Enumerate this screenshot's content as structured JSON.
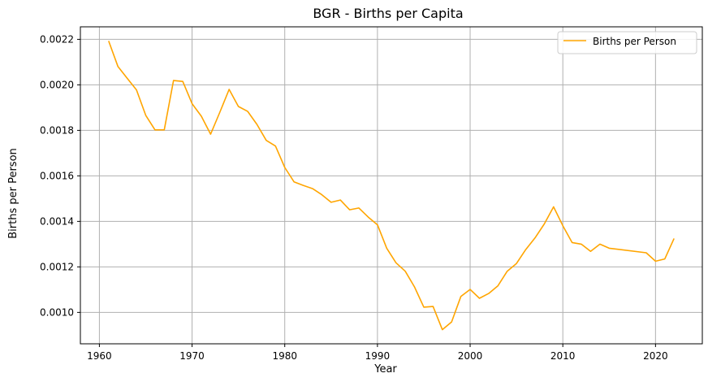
{
  "chart_data": {
    "type": "line",
    "title": "BGR - Births per Capita",
    "xlabel": "Year",
    "ylabel": "Births per Person",
    "xlim": [
      1957.95,
      2025.05
    ],
    "ylim": [
      0.000862,
      0.002255
    ],
    "xticks": [
      1960,
      1970,
      1980,
      1990,
      2000,
      2010,
      2020
    ],
    "xtick_labels": [
      "1960",
      "1970",
      "1980",
      "1990",
      "2000",
      "2010",
      "2020"
    ],
    "yticks": [
      0.001,
      0.0012,
      0.0014,
      0.0016,
      0.0018,
      0.002,
      0.0022
    ],
    "ytick_labels": [
      "0.0010",
      "0.0012",
      "0.0014",
      "0.0016",
      "0.0018",
      "0.0020",
      "0.0022"
    ],
    "grid": true,
    "legend_position": "top-right",
    "series": [
      {
        "name": "Births per Person",
        "color": "#FFA500",
        "x": [
          1961,
          1962,
          1963,
          1964,
          1965,
          1966,
          1967,
          1968,
          1969,
          1970,
          1971,
          1972,
          1973,
          1974,
          1975,
          1976,
          1977,
          1978,
          1979,
          1980,
          1981,
          1982,
          1983,
          1984,
          1985,
          1986,
          1987,
          1988,
          1989,
          1990,
          1991,
          1992,
          1993,
          1994,
          1995,
          1996,
          1997,
          1998,
          1999,
          2000,
          2001,
          2002,
          2003,
          2004,
          2005,
          2006,
          2007,
          2008,
          2009,
          2010,
          2011,
          2012,
          2013,
          2014,
          2015,
          2019,
          2020,
          2021,
          2022
        ],
        "y": [
          0.002193,
          0.002081,
          0.002029,
          0.001978,
          0.001866,
          0.001802,
          0.001802,
          0.002019,
          0.002015,
          0.001917,
          0.001862,
          0.001783,
          0.00188,
          0.00198,
          0.001905,
          0.001883,
          0.001826,
          0.001756,
          0.001731,
          0.001637,
          0.001574,
          0.001558,
          0.001544,
          0.001517,
          0.001484,
          0.001494,
          0.001451,
          0.001459,
          0.001419,
          0.001385,
          0.001282,
          0.001218,
          0.001181,
          0.001112,
          0.001023,
          0.001026,
          0.000924,
          0.000958,
          0.00107,
          0.001101,
          0.001062,
          0.001083,
          0.001117,
          0.001181,
          0.001215,
          0.001276,
          0.001327,
          0.001389,
          0.001464,
          0.001381,
          0.001307,
          0.0013,
          0.001268,
          0.0013,
          0.001282,
          0.001262,
          0.001225,
          0.001235,
          0.001325
        ]
      }
    ]
  }
}
